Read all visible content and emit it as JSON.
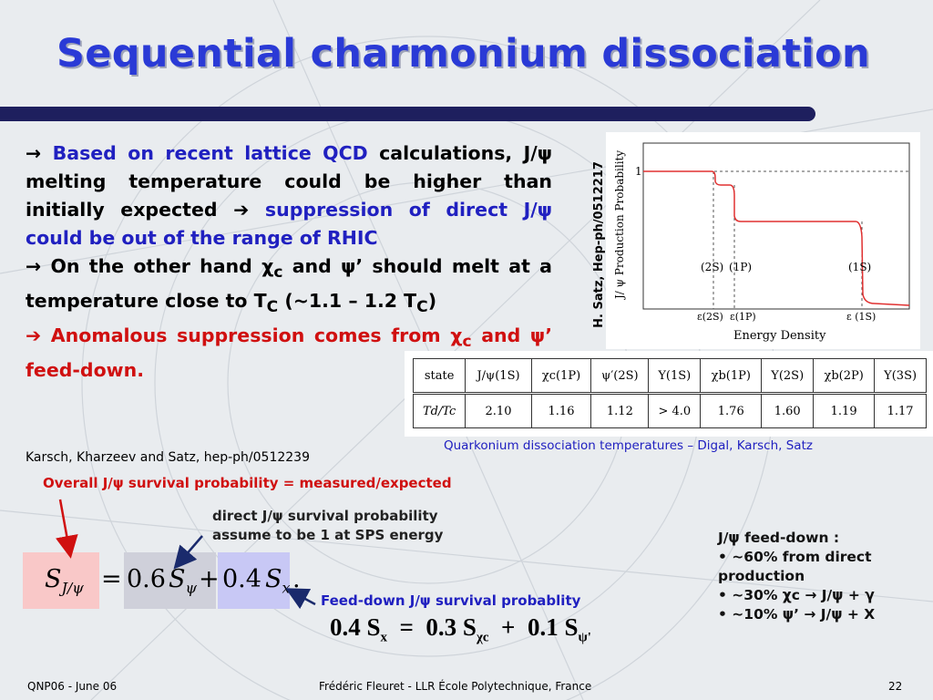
{
  "title": "Sequential charmonium dissociation",
  "bullet1": {
    "arrow": "→",
    "lead": "Based on recent lattice QCD",
    "mid": "calculations, J/ψ melting temperature could be higher than initially expected",
    "arrow2": "➔",
    "tail": "suppression of direct J/ψ could be out of the range of RHIC"
  },
  "bullet2": {
    "arrow": "→",
    "text_a": "On the other hand χ",
    "text_sub": "c",
    "text_b": " and ψ’ should melt at a temperature close to T",
    "tc_sub": "C",
    "text_c": " (~1.1 – 1.2 T",
    "tc_sub2": "C",
    "text_d": ")"
  },
  "bullet3": {
    "arrow": "➔",
    "text_a": " Anomalous suppression comes from χ",
    "text_sub": "c",
    "text_b": " and ψ’ feed-down."
  },
  "plot": {
    "side_label": "H. Satz, Hep-ph/0512217",
    "y_label": "J/ ψ Production Probability",
    "x_label": "Energy Density",
    "y_tick": "1",
    "state_labels": [
      "(2S)",
      "(1P)",
      "(1S)"
    ],
    "eps_labels": [
      "ε(2S)",
      "ε(1P)",
      "ε (1S)"
    ]
  },
  "table": {
    "header": [
      "state",
      "J/ψ(1S)",
      "χc(1P)",
      "ψ′(2S)",
      "Υ(1S)",
      "χb(1P)",
      "Υ(2S)",
      "χb(2P)",
      "Υ(3S)"
    ],
    "row_label": "Td/Tc",
    "values": [
      "2.10",
      "1.16",
      "1.12",
      "> 4.0",
      "1.76",
      "1.60",
      "1.19",
      "1.17"
    ]
  },
  "table_caption": "Quarkonium dissociation temperatures – Digal, Karsch, Satz",
  "reference": "Karsch, Kharzeev and Satz, hep-ph/0512239",
  "overall_label": "Overall J/ψ survival probability = measured/expected",
  "direct_note_line1": "direct J/ψ survival probability",
  "direct_note_line2": "assume to be 1 at SPS energy",
  "feed_label": "Feed-down J/ψ survival probablity",
  "equation": {
    "lhs": "S",
    "lhs_sub": "J/ψ",
    "equals": "=",
    "coef1": "0.6",
    "s1": "S",
    "s1_sub": "ψ",
    "plus": "+",
    "coef2": "0.4",
    "s2": "S",
    "s2_sub": "x",
    "dot": "."
  },
  "formula2": {
    "a": "0.4",
    "a_s": "S",
    "a_sub": "x",
    "eq": "=",
    "b": "0.3",
    "b_s": "S",
    "b_sub": "χc",
    "plus": "+",
    "c": "0.1",
    "c_s": "S",
    "c_sub": "ψ'"
  },
  "feeddown": {
    "title": "J/ψ feed-down :",
    "items": [
      "• ~60% from direct production",
      "• ~30% χc → J/ψ + γ",
      "• ~10% ψ’ → J/ψ + X"
    ]
  },
  "footer": {
    "left": "QNP06 - June 06",
    "center": "Frédéric Fleuret - LLR École Polytechnique, France",
    "page": "22"
  },
  "colors": {
    "title": "#2a3ad6",
    "accent_blue": "#2020c0",
    "accent_red": "#d01010",
    "bar": "#1e1f5e",
    "eq_pink": "#f9c8c8",
    "eq_grey": "#cfd0da",
    "eq_lavender": "#c8c8f5"
  }
}
